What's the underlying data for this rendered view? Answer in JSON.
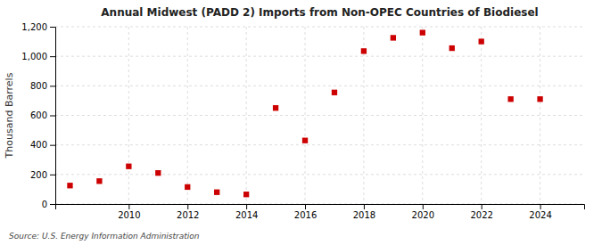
{
  "chart_data": {
    "type": "scatter",
    "title": "Annual Midwest (PADD 2) Imports from Non-OPEC Countries of Biodiesel",
    "ylabel": "Thousand Barrels",
    "annotations": [
      "Source: U.S. Energy Information Administration"
    ],
    "x": [
      2008,
      2009,
      2010,
      2011,
      2012,
      2013,
      2014,
      2015,
      2016,
      2017,
      2018,
      2019,
      2020,
      2021,
      2022,
      2023,
      2024
    ],
    "values": [
      125,
      155,
      255,
      210,
      115,
      80,
      65,
      650,
      430,
      755,
      1035,
      1125,
      1160,
      1055,
      1100,
      710,
      710
    ],
    "color": "#cc0000",
    "marker": "square",
    "xlim": [
      2007.5,
      2025.5
    ],
    "xticks": [
      2010,
      2012,
      2014,
      2016,
      2018,
      2020,
      2022,
      2024
    ],
    "ylim": [
      0,
      1200
    ],
    "yticks": [
      0,
      200,
      400,
      600,
      800,
      {
        "value": 1000,
        "label": "1,000"
      },
      {
        "value": 1200,
        "label": "1,200"
      }
    ],
    "grid": true
  }
}
